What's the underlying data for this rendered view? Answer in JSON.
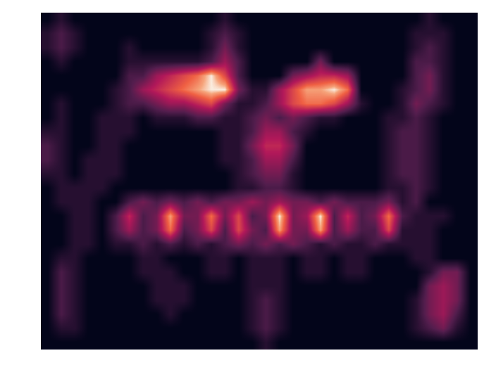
{
  "chart_data": {
    "type": "heatmap",
    "tick_labels": false,
    "cells": [
      [
        0,
        1,
        0,
        0,
        0,
        0,
        0,
        0,
        0,
        0,
        0,
        0,
        0,
        1,
        0,
        0,
        0,
        0,
        0,
        0,
        0,
        0,
        0,
        0,
        0,
        0,
        0,
        0,
        1,
        0,
        0,
        0
      ],
      [
        1,
        2,
        1,
        0,
        0,
        0,
        0,
        0,
        0,
        0,
        0,
        0,
        1,
        2,
        1,
        0,
        0,
        0,
        0,
        0,
        0,
        0,
        0,
        0,
        0,
        0,
        0,
        1,
        1,
        1,
        0,
        0
      ],
      [
        1,
        2,
        1,
        0,
        0,
        0,
        1,
        0,
        0,
        0,
        0,
        0,
        1,
        3,
        1,
        0,
        0,
        0,
        0,
        0,
        0,
        0,
        0,
        0,
        0,
        0,
        0,
        1,
        2,
        1,
        0,
        0
      ],
      [
        0,
        1,
        0,
        0,
        0,
        0,
        1,
        1,
        1,
        1,
        1,
        1,
        2,
        4,
        2,
        0,
        0,
        0,
        0,
        0,
        3,
        0,
        0,
        0,
        0,
        0,
        0,
        2,
        2,
        1,
        0,
        0
      ],
      [
        0,
        0,
        0,
        0,
        0,
        0,
        2,
        2,
        4,
        5,
        6,
        7,
        9,
        6,
        2,
        0,
        0,
        0,
        3,
        4,
        5,
        5,
        4,
        0,
        0,
        0,
        0,
        2,
        3,
        1,
        0,
        0
      ],
      [
        0,
        0,
        0,
        0,
        0,
        1,
        2,
        4,
        5,
        6,
        7,
        8,
        9,
        9,
        3,
        1,
        1,
        4,
        6,
        8,
        8,
        9,
        7,
        0,
        0,
        0,
        1,
        2,
        3,
        1,
        0,
        0
      ],
      [
        0,
        1,
        0,
        0,
        0,
        1,
        2,
        2,
        3,
        4,
        4,
        5,
        6,
        3,
        1,
        1,
        2,
        4,
        6,
        7,
        7,
        6,
        4,
        1,
        0,
        0,
        1,
        3,
        2,
        1,
        0,
        0
      ],
      [
        0,
        1,
        0,
        0,
        1,
        1,
        1,
        0,
        1,
        1,
        1,
        2,
        2,
        1,
        1,
        2,
        3,
        2,
        3,
        2,
        1,
        1,
        0,
        0,
        0,
        1,
        1,
        2,
        1,
        0,
        0,
        0
      ],
      [
        1,
        1,
        0,
        0,
        1,
        1,
        1,
        0,
        0,
        0,
        0,
        0,
        0,
        1,
        1,
        2,
        4,
        4,
        2,
        1,
        0,
        0,
        0,
        0,
        0,
        1,
        2,
        2,
        1,
        0,
        0,
        0
      ],
      [
        2,
        1,
        0,
        0,
        1,
        1,
        0,
        0,
        0,
        0,
        0,
        0,
        0,
        1,
        1,
        3,
        5,
        5,
        3,
        0,
        0,
        0,
        0,
        0,
        0,
        1,
        2,
        2,
        1,
        0,
        0,
        0
      ],
      [
        2,
        1,
        0,
        1,
        1,
        1,
        0,
        0,
        0,
        0,
        0,
        0,
        0,
        1,
        1,
        2,
        4,
        4,
        2,
        0,
        0,
        0,
        0,
        0,
        0,
        1,
        2,
        2,
        1,
        0,
        0,
        0
      ],
      [
        1,
        1,
        0,
        1,
        1,
        1,
        0,
        0,
        0,
        0,
        0,
        0,
        0,
        0,
        1,
        2,
        3,
        3,
        1,
        0,
        0,
        0,
        0,
        0,
        0,
        1,
        2,
        2,
        1,
        0,
        0,
        0
      ],
      [
        0,
        1,
        1,
        1,
        1,
        0,
        0,
        0,
        0,
        0,
        0,
        0,
        0,
        0,
        1,
        1,
        2,
        2,
        1,
        0,
        0,
        0,
        0,
        0,
        0,
        1,
        1,
        2,
        1,
        0,
        0,
        0
      ],
      [
        0,
        1,
        1,
        1,
        0,
        0,
        2,
        3,
        2,
        3,
        2,
        3,
        2,
        3,
        3,
        4,
        3,
        4,
        3,
        3,
        2,
        3,
        2,
        2,
        2,
        3,
        1,
        2,
        0,
        0,
        0,
        0
      ],
      [
        0,
        0,
        1,
        1,
        0,
        2,
        5,
        2,
        3,
        8,
        3,
        3,
        7,
        3,
        6,
        2,
        3,
        9,
        3,
        4,
        9,
        2,
        5,
        2,
        3,
        7,
        2,
        1,
        1,
        1,
        0,
        0
      ],
      [
        0,
        0,
        1,
        1,
        0,
        2,
        4,
        2,
        3,
        7,
        2,
        3,
        6,
        2,
        6,
        3,
        2,
        8,
        3,
        3,
        8,
        2,
        4,
        2,
        2,
        6,
        1,
        1,
        1,
        0,
        0,
        0
      ],
      [
        0,
        0,
        1,
        1,
        0,
        1,
        1,
        2,
        1,
        2,
        1,
        2,
        1,
        2,
        3,
        2,
        3,
        2,
        3,
        2,
        1,
        2,
        1,
        1,
        2,
        1,
        1,
        1,
        1,
        0,
        0,
        0
      ],
      [
        0,
        1,
        1,
        0,
        0,
        0,
        0,
        1,
        1,
        0,
        0,
        0,
        1,
        1,
        0,
        1,
        1,
        1,
        0,
        1,
        1,
        0,
        1,
        1,
        0,
        0,
        0,
        1,
        1,
        0,
        0,
        0
      ],
      [
        0,
        2,
        1,
        0,
        0,
        0,
        0,
        1,
        1,
        1,
        0,
        0,
        1,
        1,
        0,
        1,
        1,
        1,
        0,
        1,
        1,
        0,
        1,
        1,
        0,
        0,
        0,
        0,
        1,
        3,
        3,
        0
      ],
      [
        0,
        2,
        1,
        0,
        0,
        0,
        0,
        0,
        1,
        1,
        1,
        0,
        0,
        0,
        0,
        1,
        1,
        1,
        0,
        0,
        0,
        0,
        0,
        0,
        0,
        0,
        0,
        0,
        3,
        4,
        3,
        0
      ],
      [
        0,
        2,
        1,
        0,
        0,
        0,
        0,
        0,
        1,
        1,
        1,
        0,
        0,
        0,
        0,
        1,
        2,
        1,
        0,
        0,
        0,
        0,
        0,
        0,
        0,
        0,
        0,
        1,
        3,
        4,
        3,
        0
      ],
      [
        0,
        2,
        1,
        0,
        0,
        0,
        0,
        0,
        0,
        1,
        0,
        0,
        0,
        0,
        0,
        1,
        2,
        1,
        0,
        0,
        0,
        0,
        0,
        0,
        0,
        0,
        0,
        1,
        3,
        4,
        2,
        0
      ],
      [
        0,
        1,
        1,
        0,
        0,
        0,
        0,
        0,
        0,
        0,
        0,
        0,
        0,
        0,
        0,
        1,
        2,
        1,
        0,
        0,
        0,
        0,
        0,
        0,
        0,
        0,
        0,
        1,
        2,
        3,
        1,
        0
      ],
      [
        0,
        0,
        0,
        0,
        0,
        0,
        0,
        0,
        0,
        0,
        0,
        0,
        0,
        0,
        0,
        0,
        1,
        0,
        0,
        0,
        0,
        0,
        0,
        0,
        0,
        0,
        0,
        0,
        0,
        0,
        0,
        0
      ]
    ]
  }
}
